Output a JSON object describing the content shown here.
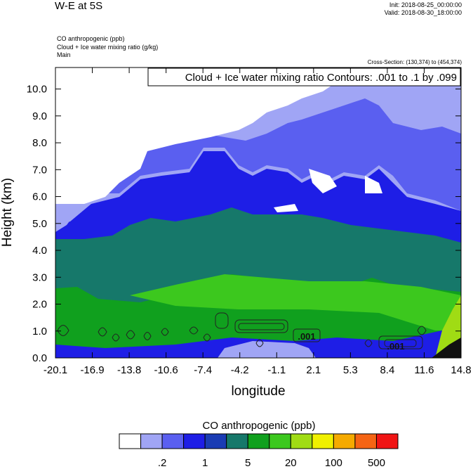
{
  "header": {
    "title": "W-E at 5S",
    "init": "Init: 2018-08-25_00:00:00",
    "valid": "Valid: 2018-08-30_18:00:00",
    "fields": [
      "CO anthropogenic   (ppb)",
      "Cloud + Ice water mixing ratio   (g/kg)",
      "Main"
    ],
    "cross_section": "Cross-Section: (130,374) to (454,374)"
  },
  "chart_data": {
    "type": "heatmap",
    "xlabel": "longitude",
    "ylabel": "Height (km)",
    "x_ticks": [
      "-20.1",
      "-16.9",
      "-13.8",
      "-10.6",
      "-7.4",
      "-4.2",
      "-1.1",
      "2.1",
      "5.3",
      "8.4",
      "11.6",
      "14.8"
    ],
    "y_ticks": [
      "0.0",
      "1.0",
      "2.0",
      "3.0",
      "4.0",
      "5.0",
      "6.0",
      "7.0",
      "8.0",
      "9.0",
      "10.0"
    ],
    "xlim": [
      -20.1,
      14.8
    ],
    "ylim": [
      0,
      10.8
    ],
    "contour_label": "Cloud + Ice water mixing ratio Contours: .001 to .1 by .099",
    "contour_value_labels": [
      ".001",
      ".001"
    ],
    "colorbar": {
      "title": "CO anthropogenic  (ppb)",
      "tick_labels": [
        ".2",
        "1",
        "5",
        "20",
        "100",
        "500"
      ],
      "colors": [
        "#ffffff",
        "#a0a5f5",
        "#5a5ff0",
        "#1e1ee6",
        "#1a3cb4",
        "#16786a",
        "#10a01e",
        "#3cc81e",
        "#a0dc14",
        "#f0f000",
        "#f5aa00",
        "#f56414",
        "#f01414"
      ]
    }
  }
}
